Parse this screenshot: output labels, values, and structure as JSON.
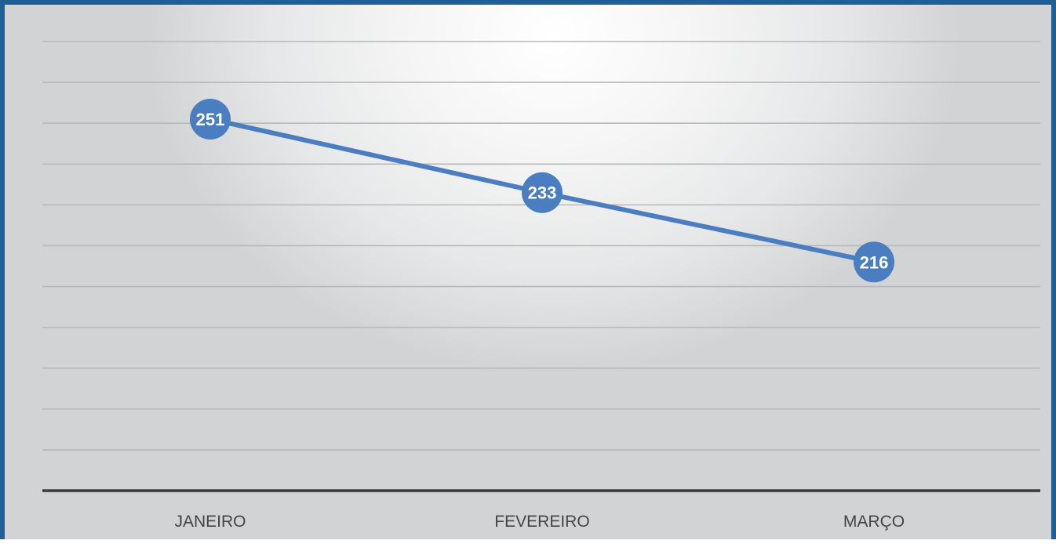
{
  "chart_data": {
    "type": "line",
    "categories": [
      "JANEIRO",
      "FEVEREIRO",
      "MARÇO"
    ],
    "series": [
      {
        "values": [
          251,
          233,
          216
        ]
      }
    ],
    "data_labels": [
      "251",
      "233",
      "216"
    ],
    "title": "",
    "xlabel": "",
    "ylabel": "",
    "ylim": [
      160,
      270
    ],
    "y_gridlines": [
      160,
      170,
      180,
      190,
      200,
      210,
      220,
      230,
      240,
      250,
      260,
      270
    ],
    "grid": true,
    "legend": "none",
    "colors": {
      "series": "#4a7ec0",
      "border": "#1f5f96",
      "gridline": "#b7b8ba",
      "axis": "#3a3a3a",
      "label_text": "#ffffff",
      "tick_text": "#454545"
    }
  }
}
